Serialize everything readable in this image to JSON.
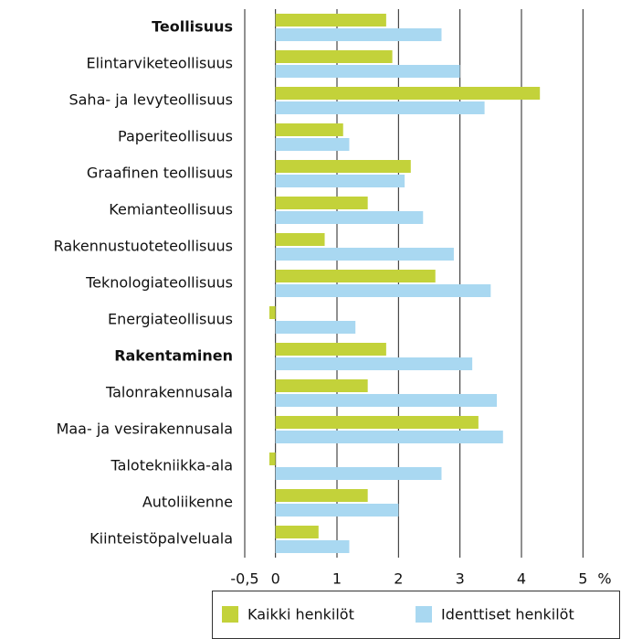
{
  "chart_data": {
    "type": "hbar",
    "categories": [
      "Teollisuus",
      "Elintarviketeollisuus",
      "Saha- ja levyteollisuus",
      "Paperiteollisuus",
      "Graafinen teollisuus",
      "Kemianteollisuus",
      "Rakennustuoteteollisuus",
      "Teknologiateollisuus",
      "Energiateollisuus",
      "Rakentaminen",
      "Talonrakennusala",
      "Maa- ja vesirakennusala",
      "Talotekniikka-ala",
      "Autoliikenne",
      "Kiinteistöpalveluala"
    ],
    "series": [
      {
        "name": "Kaikki henkilöt",
        "color": "#c3d23a",
        "values": [
          1.8,
          1.9,
          4.3,
          1.1,
          2.2,
          1.5,
          0.8,
          2.6,
          -0.1,
          1.8,
          1.5,
          3.3,
          -0.1,
          1.5,
          0.7
        ]
      },
      {
        "name": "Identtiset henkilöt",
        "color": "#a9d8f1",
        "values": [
          2.7,
          3.0,
          3.4,
          1.2,
          2.1,
          2.4,
          2.9,
          3.5,
          1.3,
          3.2,
          3.6,
          3.7,
          2.7,
          2.0,
          1.2
        ]
      }
    ],
    "x_label": "%",
    "xlim": [
      -0.5,
      5.5
    ],
    "xticks": [
      {
        "value": -0.5,
        "label": "-0,5"
      },
      0,
      1,
      2,
      3,
      4,
      5
    ],
    "grid": true
  }
}
